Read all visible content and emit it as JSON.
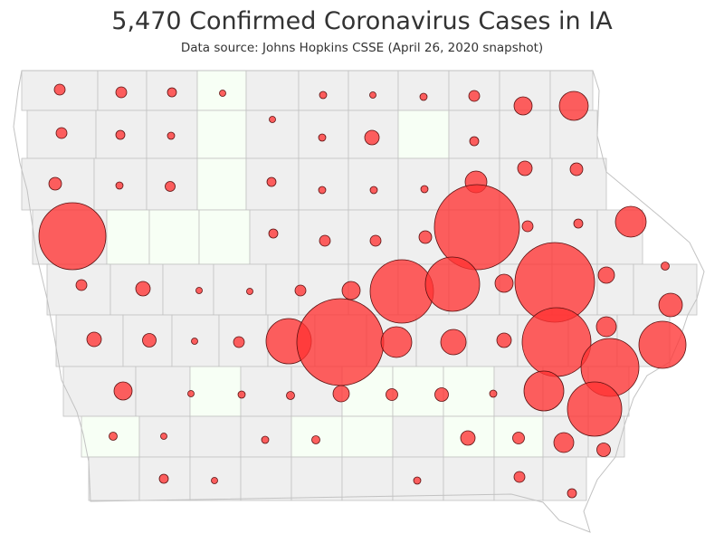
{
  "title": "5,470 Confirmed Coronavirus Cases in IA",
  "subtitle": "Data source: Johns Hopkins CSSE (April 26, 2020 snapshot)",
  "colors": {
    "county_fill": "#efefef",
    "zero_case_county_fill": "#f7fff5",
    "county_border": "#c2c2c2",
    "bubble_fill": "#ff3333",
    "bubble_stroke": "#5a1010"
  }
}
